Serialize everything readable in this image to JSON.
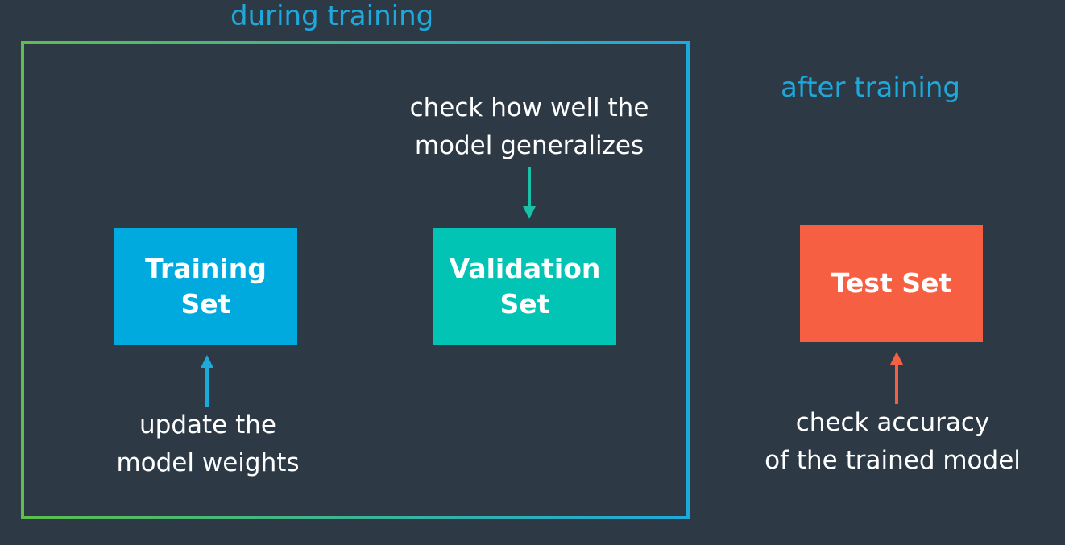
{
  "labels": {
    "during": "during training",
    "after": "after training"
  },
  "boxes": {
    "training": {
      "line1": "Training",
      "line2": "Set",
      "color": "#00aade"
    },
    "validation": {
      "line1": "Validation",
      "line2": "Set",
      "color": "#02c4b4"
    },
    "test": {
      "line1": "Test Set",
      "color": "#f65f42"
    }
  },
  "notes": {
    "validation": {
      "line1": "check how well the",
      "line2": "model generalizes"
    },
    "training": {
      "line1": "update the",
      "line2": "model weights"
    },
    "test": {
      "line1": "check accuracy",
      "line2": "of the trained model"
    }
  },
  "colors": {
    "background": "#2d3a46",
    "heading": "#1ea9dc",
    "frame_start": "#5cbf4e",
    "frame_end": "#1ea9dc",
    "arrow_training": "#1ea9dc",
    "arrow_validation": "#17c2a8",
    "arrow_test": "#f65f42"
  }
}
